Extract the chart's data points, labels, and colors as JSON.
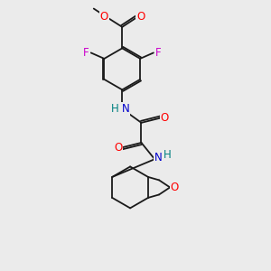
{
  "bg_color": "#ebebeb",
  "bond_color": "#1a1a1a",
  "atom_colors": {
    "O": "#ff0000",
    "N": "#0000cd",
    "F": "#cc00cc",
    "H": "#008080"
  },
  "lw": 1.3,
  "fs": 8.5
}
